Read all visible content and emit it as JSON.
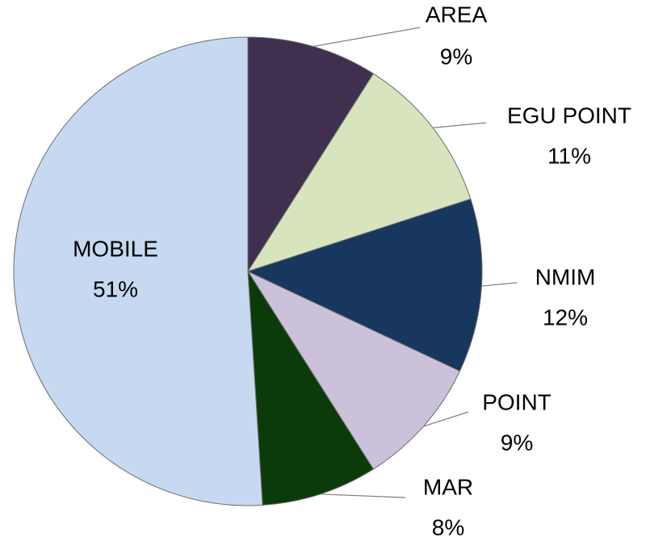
{
  "chart_data": {
    "type": "pie",
    "categories": [
      "AREA",
      "EGU POINT",
      "NMIM",
      "POINT",
      "MAR",
      "MOBILE"
    ],
    "values": [
      9,
      11,
      12,
      9,
      8,
      51
    ],
    "value_labels": [
      "9%",
      "11%",
      "12%",
      "9%",
      "8%",
      "51%"
    ],
    "colors": [
      "#3f3050",
      "#d7e4bd",
      "#17375e",
      "#ccc1da",
      "#0b3b0b",
      "#c6d9f1"
    ]
  }
}
